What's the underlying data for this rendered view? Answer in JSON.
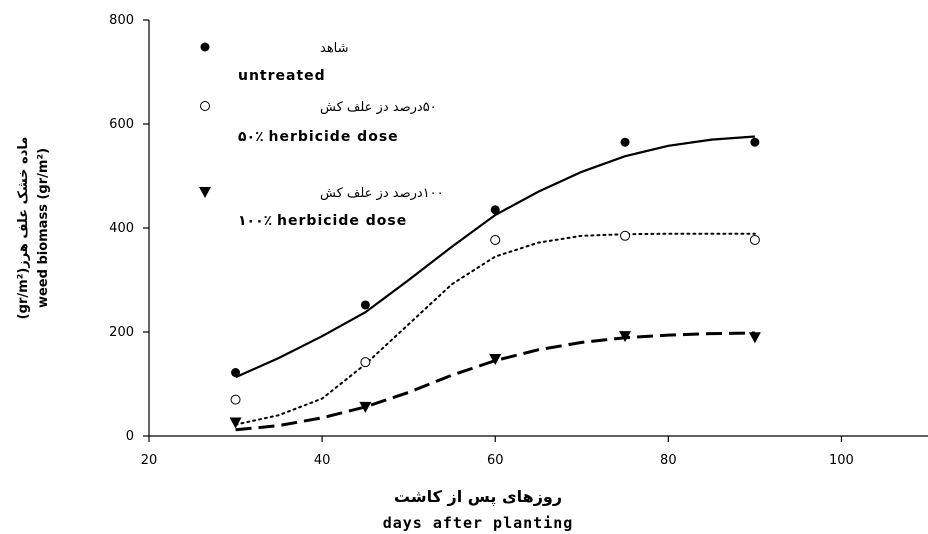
{
  "chart_data": {
    "type": "scatter",
    "xlabel_primary": "روزهای پس از کاشت",
    "xlabel_secondary": "days after planting",
    "ylabel_primary": "ماده خشک علف هرز(gr/m²)",
    "ylabel_secondary": "weed biomass (gr/m²)",
    "xlim": [
      20,
      110
    ],
    "ylim": [
      0,
      800
    ],
    "xticks": [
      "20",
      "40",
      "60",
      "80",
      "100"
    ],
    "yticks": [
      "0",
      "200",
      "400",
      "600",
      "800"
    ],
    "grid": false,
    "legend_position": "top-left",
    "series": [
      {
        "name_primary": "شاهد",
        "name_secondary": "untreated",
        "marker": "filled-circle",
        "line_style": "solid",
        "x": [
          30,
          45,
          60,
          75,
          90
        ],
        "y": [
          122,
          252,
          435,
          565,
          565
        ],
        "fit": [
          [
            30,
            113
          ],
          [
            35,
            150
          ],
          [
            40,
            192
          ],
          [
            45,
            238
          ],
          [
            50,
            300
          ],
          [
            55,
            364
          ],
          [
            60,
            425
          ],
          [
            65,
            470
          ],
          [
            70,
            508
          ],
          [
            75,
            538
          ],
          [
            80,
            558
          ],
          [
            85,
            570
          ],
          [
            90,
            576
          ]
        ]
      },
      {
        "name_primary": "۵۰درصد دز علف کش",
        "name_secondary": "۵۰٪ herbicide dose",
        "marker": "open-circle",
        "line_style": "dotted",
        "x": [
          30,
          45,
          60,
          75,
          90
        ],
        "y": [
          70,
          142,
          377,
          385,
          377
        ],
        "fit": [
          [
            30,
            22
          ],
          [
            35,
            40
          ],
          [
            40,
            72
          ],
          [
            45,
            138
          ],
          [
            50,
            215
          ],
          [
            55,
            292
          ],
          [
            60,
            345
          ],
          [
            65,
            372
          ],
          [
            70,
            385
          ],
          [
            75,
            388
          ],
          [
            80,
            389
          ],
          [
            85,
            389
          ],
          [
            90,
            389
          ]
        ]
      },
      {
        "name_primary": "۱۰۰درصد دز علف کش",
        "name_secondary": "۱۰۰٪ herbicide dose",
        "marker": "filled-triangle-down",
        "line_style": "dashed",
        "x": [
          30,
          45,
          60,
          75,
          90
        ],
        "y": [
          26,
          56,
          148,
          192,
          190
        ],
        "fit": [
          [
            30,
            12
          ],
          [
            35,
            20
          ],
          [
            40,
            35
          ],
          [
            45,
            56
          ],
          [
            50,
            84
          ],
          [
            55,
            117
          ],
          [
            60,
            145
          ],
          [
            65,
            166
          ],
          [
            70,
            180
          ],
          [
            75,
            189
          ],
          [
            80,
            194
          ],
          [
            85,
            197
          ],
          [
            90,
            198
          ]
        ]
      }
    ]
  }
}
